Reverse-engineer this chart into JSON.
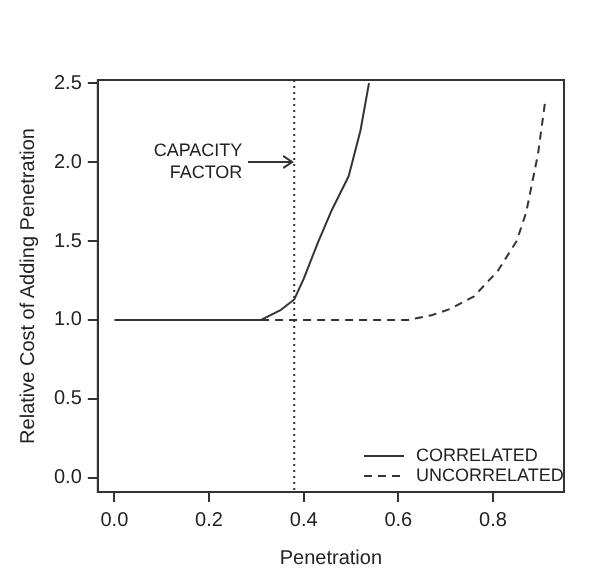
{
  "chart_data": {
    "type": "line",
    "xlabel": "Penetration",
    "ylabel": "Relative Cost of Adding Penetration",
    "xlim": [
      -0.035,
      0.95
    ],
    "ylim": [
      -0.09,
      2.52
    ],
    "xticks": [
      {
        "value": 0,
        "label": "0.0"
      },
      0.2,
      0.4,
      0.6,
      0.8
    ],
    "yticks": [
      {
        "value": 0,
        "label": "0.0"
      },
      0.5,
      {
        "value": 1,
        "label": "1.0"
      },
      1.5,
      {
        "value": 2,
        "label": "2.0"
      },
      2.5
    ],
    "series": [
      {
        "name": "CORRELATED",
        "color": "#333333",
        "line_style": "solid",
        "x": [
          0,
          0.31,
          0.35,
          0.38,
          0.4,
          0.43,
          0.46,
          0.495,
          0.52,
          0.538
        ],
        "values": [
          1,
          1,
          1.06,
          1.13,
          1.26,
          1.49,
          1.7,
          1.91,
          2.2,
          2.5
        ]
      },
      {
        "name": "UNCORRELATED",
        "color": "#333333",
        "line_style": "dashed",
        "x": [
          0.31,
          0.5,
          0.62,
          0.67,
          0.71,
          0.76,
          0.81,
          0.85,
          0.87,
          0.895,
          0.91
        ],
        "values": [
          1,
          1,
          1,
          1.03,
          1.07,
          1.15,
          1.31,
          1.5,
          1.68,
          2.05,
          2.38
        ]
      }
    ],
    "ref_lines": [
      {
        "axis": "x",
        "value": 0.38,
        "line_style": "dotted",
        "color": "#333333"
      }
    ],
    "annotations": [
      "CAPACITY\nFACTOR"
    ],
    "legend": "bottom right",
    "grid": false,
    "marker": "none"
  }
}
